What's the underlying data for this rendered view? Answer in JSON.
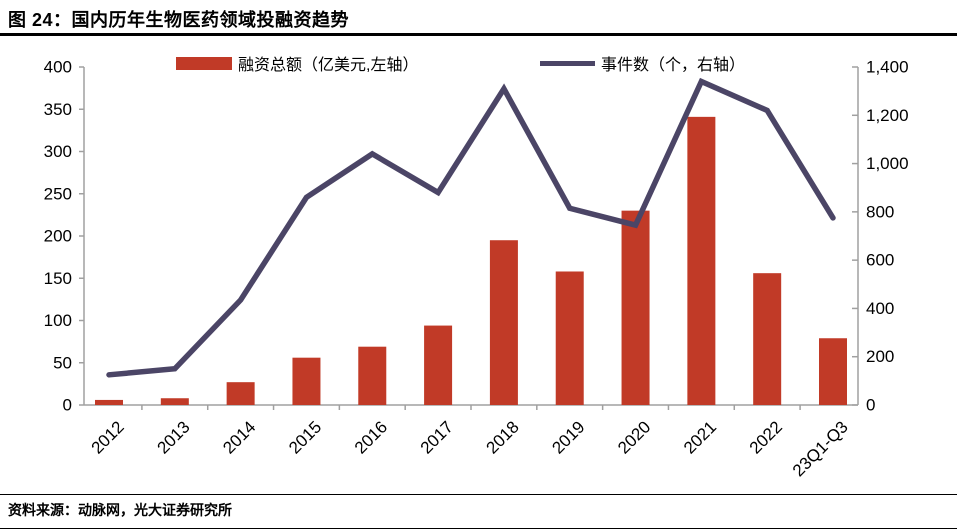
{
  "header": {
    "title": "图 24：国内历年生物医药领域投融资趋势"
  },
  "legend": [
    {
      "label": "融资总额（亿美元,左轴）",
      "swatch": "red-bar"
    },
    {
      "label": "事件数（个，右轴）",
      "swatch": "dark-line"
    }
  ],
  "footer": {
    "source": "资料来源：动脉网，光大证券研究所"
  },
  "colors": {
    "bar": "#C13A27",
    "line": "#4B4566",
    "axis": "#A0A0A0",
    "text": "#000000"
  },
  "chart_data": {
    "type": "bar+line combo, dual axis",
    "title": "图 24：国内历年生物医药领域投融资趋势",
    "categories": [
      "2012",
      "2013",
      "2014",
      "2015",
      "2016",
      "2017",
      "2018",
      "2019",
      "2020",
      "2021",
      "2022",
      "23Q1-Q3"
    ],
    "series": [
      {
        "name": "融资总额（亿美元,左轴）",
        "type": "bar",
        "axis": "left",
        "values": [
          6,
          8,
          27,
          56,
          69,
          94,
          195,
          158,
          230,
          341,
          156,
          79
        ]
      },
      {
        "name": "事件数（个，右轴）",
        "type": "line",
        "axis": "right",
        "values": [
          125,
          150,
          435,
          860,
          1040,
          880,
          1310,
          815,
          745,
          1340,
          1220,
          775
        ]
      }
    ],
    "left_axis": {
      "min": 0,
      "max": 400,
      "step": 50,
      "tick_labels": [
        "0",
        "50",
        "100",
        "150",
        "200",
        "250",
        "300",
        "350",
        "400"
      ]
    },
    "right_axis": {
      "min": 0,
      "max": 1400,
      "step": 200,
      "tick_labels": [
        "0",
        "200",
        "400",
        "600",
        "800",
        "1,000",
        "1,200",
        "1,400"
      ]
    },
    "grid": false,
    "legend_position": "top",
    "x_tick_label_rotation": -45
  }
}
